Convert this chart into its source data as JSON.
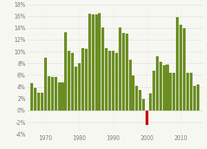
{
  "years": [
    1966,
    1967,
    1968,
    1969,
    1970,
    1971,
    1972,
    1973,
    1974,
    1975,
    1976,
    1977,
    1978,
    1979,
    1980,
    1981,
    1982,
    1983,
    1984,
    1985,
    1986,
    1987,
    1988,
    1989,
    1990,
    1991,
    1992,
    1993,
    1994,
    1995,
    1996,
    1997,
    1998,
    1999,
    2000,
    2001,
    2002,
    2003,
    2004,
    2005,
    2006,
    2007,
    2008,
    2009,
    2010,
    2011,
    2012,
    2013,
    2014,
    2015
  ],
  "values": [
    4.7,
    3.8,
    3.0,
    3.0,
    9.0,
    5.8,
    5.7,
    5.7,
    4.8,
    4.8,
    13.3,
    10.1,
    9.8,
    7.4,
    8.0,
    10.6,
    10.5,
    16.4,
    16.3,
    16.3,
    16.5,
    14.1,
    10.6,
    10.1,
    10.1,
    9.8,
    14.1,
    13.2,
    13.0,
    8.6,
    5.9,
    4.2,
    3.5,
    2.0,
    -2.4,
    2.9,
    6.8,
    9.2,
    8.3,
    7.7,
    7.8,
    6.4,
    6.4,
    15.9,
    14.6,
    14.0,
    6.4,
    6.4,
    4.2,
    4.4
  ],
  "colors": [
    "#6b8e23",
    "#6b8e23",
    "#6b8e23",
    "#6b8e23",
    "#6b8e23",
    "#6b8e23",
    "#6b8e23",
    "#6b8e23",
    "#6b8e23",
    "#6b8e23",
    "#6b8e23",
    "#6b8e23",
    "#6b8e23",
    "#6b8e23",
    "#6b8e23",
    "#6b8e23",
    "#6b8e23",
    "#6b8e23",
    "#6b8e23",
    "#6b8e23",
    "#6b8e23",
    "#6b8e23",
    "#6b8e23",
    "#6b8e23",
    "#6b8e23",
    "#6b8e23",
    "#6b8e23",
    "#6b8e23",
    "#6b8e23",
    "#6b8e23",
    "#6b8e23",
    "#6b8e23",
    "#6b8e23",
    "#6b8e23",
    "#cc0000",
    "#6b8e23",
    "#6b8e23",
    "#6b8e23",
    "#6b8e23",
    "#6b8e23",
    "#6b8e23",
    "#6b8e23",
    "#6b8e23",
    "#6b8e23",
    "#6b8e23",
    "#6b8e23",
    "#6b8e23",
    "#6b8e23",
    "#6b8e23",
    "#6b8e23"
  ],
  "ylim": [
    -4,
    18
  ],
  "yticks": [
    -4,
    -2,
    0,
    2,
    4,
    6,
    8,
    10,
    12,
    14,
    16,
    18
  ],
  "xticks": [
    1970,
    1980,
    1990,
    2000,
    2010
  ],
  "bg_color": "#f7f7f2",
  "grid_color": "#dddddd",
  "bar_width": 0.82
}
